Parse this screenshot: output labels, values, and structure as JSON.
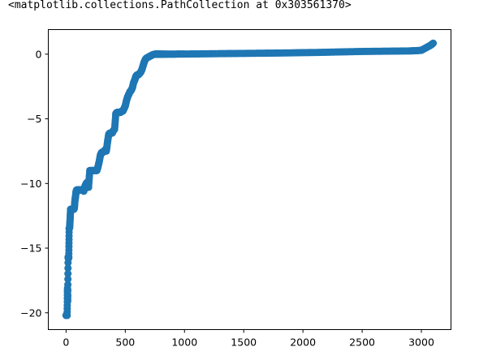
{
  "output_text": "<matplotlib.collections.PathCollection at 0x303561370>",
  "chart_data": {
    "type": "scatter",
    "title": "",
    "xlabel": "",
    "ylabel": "",
    "xlim": [
      -150,
      3250
    ],
    "ylim": [
      -21.3,
      1.9
    ],
    "xticks": [
      0,
      500,
      1000,
      1500,
      2000,
      2500,
      3000
    ],
    "yticks": [
      0,
      -5,
      -10,
      -15,
      -20
    ],
    "x_tick_labels": [
      "0",
      "500",
      "1000",
      "1500",
      "2000",
      "2500",
      "3000"
    ],
    "y_tick_labels": [
      "0",
      "−5",
      "−10",
      "−15",
      "−20"
    ],
    "grid": false,
    "marker_color": "#1f77b4",
    "series": [
      {
        "x": [
          0,
          3,
          6,
          9,
          12,
          14,
          17,
          20,
          23,
          26,
          30,
          34,
          38,
          42,
          46,
          50,
          55,
          60,
          65,
          70,
          75,
          80,
          85,
          90,
          95,
          100,
          110,
          120,
          130,
          140,
          150,
          160,
          170,
          180,
          190,
          200,
          210,
          220,
          230,
          240,
          250,
          260,
          270,
          280,
          290,
          300,
          310,
          320,
          330,
          340,
          350,
          360,
          370,
          380,
          390,
          400,
          410,
          420,
          430,
          440,
          450,
          460,
          470,
          480,
          490,
          500,
          510,
          520,
          530,
          540,
          550,
          560,
          570,
          580,
          590,
          600,
          610,
          620,
          630,
          640,
          650,
          660,
          670,
          680,
          690,
          700,
          710,
          720,
          730,
          740,
          750,
          760,
          770,
          780,
          790,
          800,
          820,
          850,
          900,
          950,
          1000,
          1100,
          1200,
          1300,
          1400,
          1500,
          1600,
          1700,
          1800,
          1900,
          2000,
          2100,
          2200,
          2300,
          2400,
          2500,
          2600,
          2700,
          2800,
          2900,
          2950,
          3000,
          3030,
          3060,
          3080,
          3100
        ],
        "y": [
          -20.2,
          -20.2,
          -20.2,
          -20.2,
          -18.1,
          -19.1,
          -15.7,
          -15.8,
          -15.7,
          -13.5,
          -13.4,
          -12.8,
          -12,
          -12,
          -12,
          -12,
          -12,
          -12,
          -12,
          -11.9,
          -11.3,
          -11,
          -10.6,
          -10.5,
          -10.5,
          -10.5,
          -10.5,
          -10.5,
          -10.5,
          -10.5,
          -10.6,
          -10.2,
          -10,
          -9.9,
          -10.3,
          -9,
          -9,
          -9,
          -9,
          -9,
          -9,
          -9,
          -8.7,
          -8.3,
          -7.8,
          -7.6,
          -7.6,
          -7.5,
          -7.4,
          -7.5,
          -6.8,
          -6.2,
          -6.1,
          -6.1,
          -6.1,
          -5.9,
          -5.8,
          -4.6,
          -4.5,
          -4.5,
          -4.5,
          -4.5,
          -4.4,
          -4.4,
          -4.2,
          -4,
          -3.6,
          -3.3,
          -3.1,
          -2.9,
          -2.8,
          -2.6,
          -2.2,
          -2,
          -1.7,
          -1.6,
          -1.6,
          -1.5,
          -1.4,
          -1.2,
          -0.9,
          -0.6,
          -0.4,
          -0.3,
          -0.25,
          -0.2,
          -0.15,
          -0.1,
          -0.05,
          -0.02,
          0,
          0,
          0,
          0,
          0,
          0,
          0,
          0,
          0,
          0.01,
          0.01,
          0.02,
          0.03,
          0.04,
          0.05,
          0.06,
          0.07,
          0.08,
          0.09,
          0.1,
          0.12,
          0.13,
          0.15,
          0.17,
          0.19,
          0.21,
          0.22,
          0.23,
          0.24,
          0.25,
          0.27,
          0.3,
          0.45,
          0.6,
          0.7,
          0.85
        ]
      }
    ]
  }
}
